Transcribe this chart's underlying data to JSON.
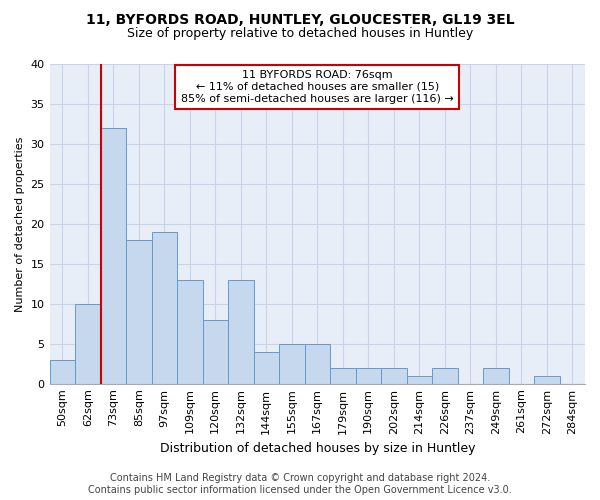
{
  "title1": "11, BYFORDS ROAD, HUNTLEY, GLOUCESTER, GL19 3EL",
  "title2": "Size of property relative to detached houses in Huntley",
  "xlabel": "Distribution of detached houses by size in Huntley",
  "ylabel": "Number of detached properties",
  "categories": [
    "50sqm",
    "62sqm",
    "73sqm",
    "85sqm",
    "97sqm",
    "109sqm",
    "120sqm",
    "132sqm",
    "144sqm",
    "155sqm",
    "167sqm",
    "179sqm",
    "190sqm",
    "202sqm",
    "214sqm",
    "226sqm",
    "237sqm",
    "249sqm",
    "261sqm",
    "272sqm",
    "284sqm"
  ],
  "values": [
    3,
    10,
    32,
    18,
    19,
    13,
    8,
    13,
    4,
    5,
    5,
    2,
    2,
    2,
    1,
    2,
    0,
    2,
    0,
    1,
    0
  ],
  "bar_color": "#c5d8ee",
  "bar_edge_color": "#6699cc",
  "red_line_index": 2,
  "annotation_text_line1": "11 BYFORDS ROAD: 76sqm",
  "annotation_text_line2": "← 11% of detached houses are smaller (15)",
  "annotation_text_line3": "85% of semi-detached houses are larger (116) →",
  "annotation_box_facecolor": "#ffffff",
  "annotation_box_edgecolor": "#cc0000",
  "red_line_color": "#cc0000",
  "footer1": "Contains HM Land Registry data © Crown copyright and database right 2024.",
  "footer2": "Contains public sector information licensed under the Open Government Licence v3.0.",
  "ylim": [
    0,
    40
  ],
  "yticks": [
    0,
    5,
    10,
    15,
    20,
    25,
    30,
    35,
    40
  ],
  "grid_color": "#c8d4e8",
  "bg_color": "#e8eef8",
  "title1_fontsize": 10,
  "title2_fontsize": 9,
  "xlabel_fontsize": 9,
  "ylabel_fontsize": 8,
  "tick_fontsize": 8,
  "footer_fontsize": 7,
  "ann_fontsize": 8
}
